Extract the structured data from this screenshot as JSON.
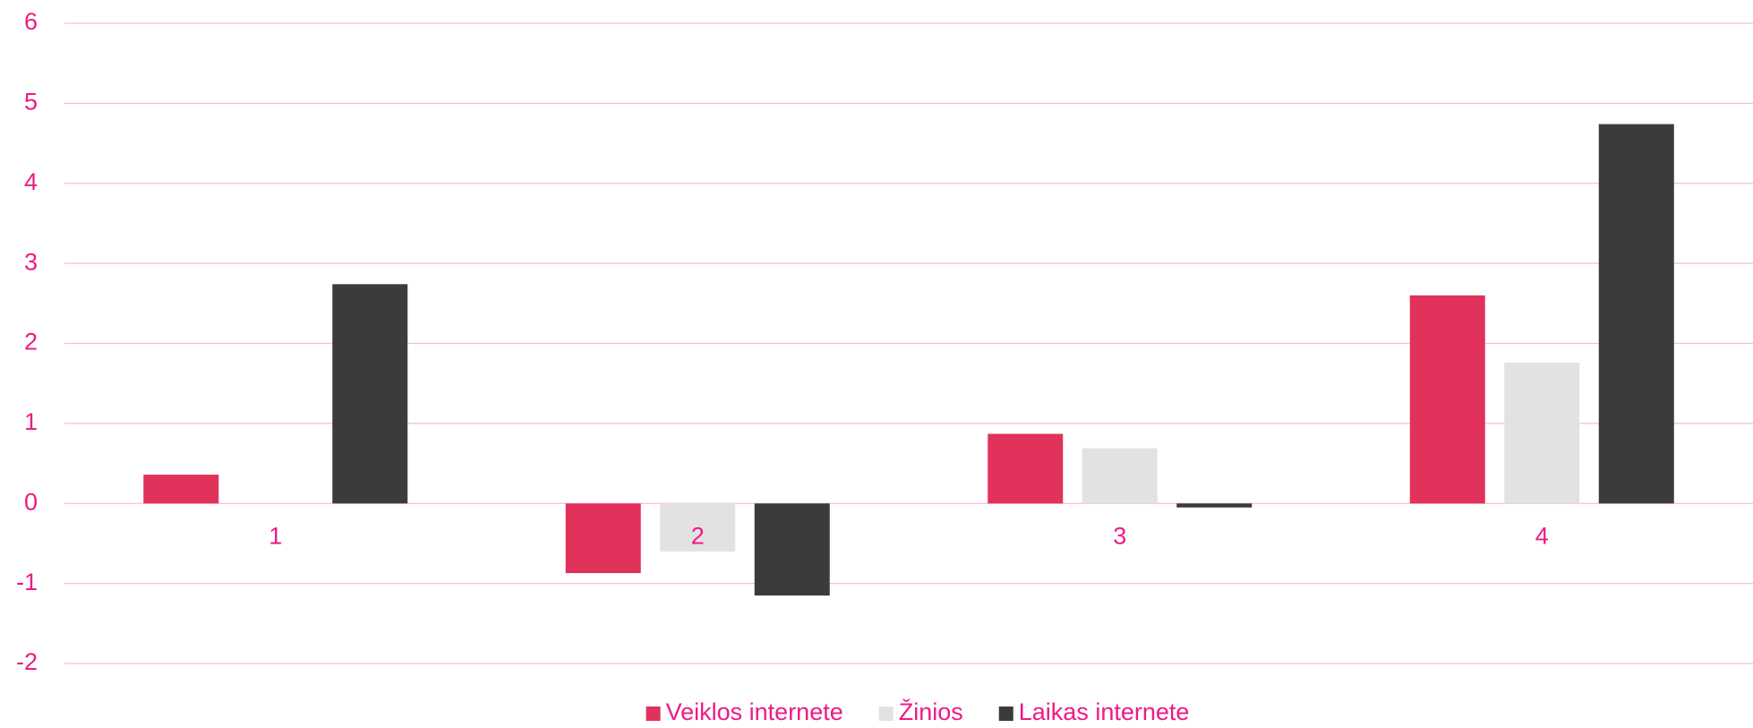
{
  "chart_data": {
    "type": "bar",
    "categories": [
      "1",
      "2",
      "3",
      "4"
    ],
    "series": [
      {
        "name": "Veiklos internete",
        "color": "#e0325a",
        "values": [
          0.36,
          -0.87,
          0.87,
          2.6
        ]
      },
      {
        "name": "Žinios",
        "color": "#e2e2e2",
        "values": [
          0,
          -0.6,
          0.69,
          1.76
        ]
      },
      {
        "name": "Laikas internete",
        "color": "#3b3b3b",
        "values": [
          2.74,
          -1.15,
          -0.05,
          4.74
        ]
      }
    ],
    "ylim": [
      -2,
      6
    ],
    "yticks": [
      -2,
      -1,
      0,
      1,
      2,
      3,
      4,
      5,
      6
    ],
    "grid": true,
    "legend": "bottom"
  }
}
